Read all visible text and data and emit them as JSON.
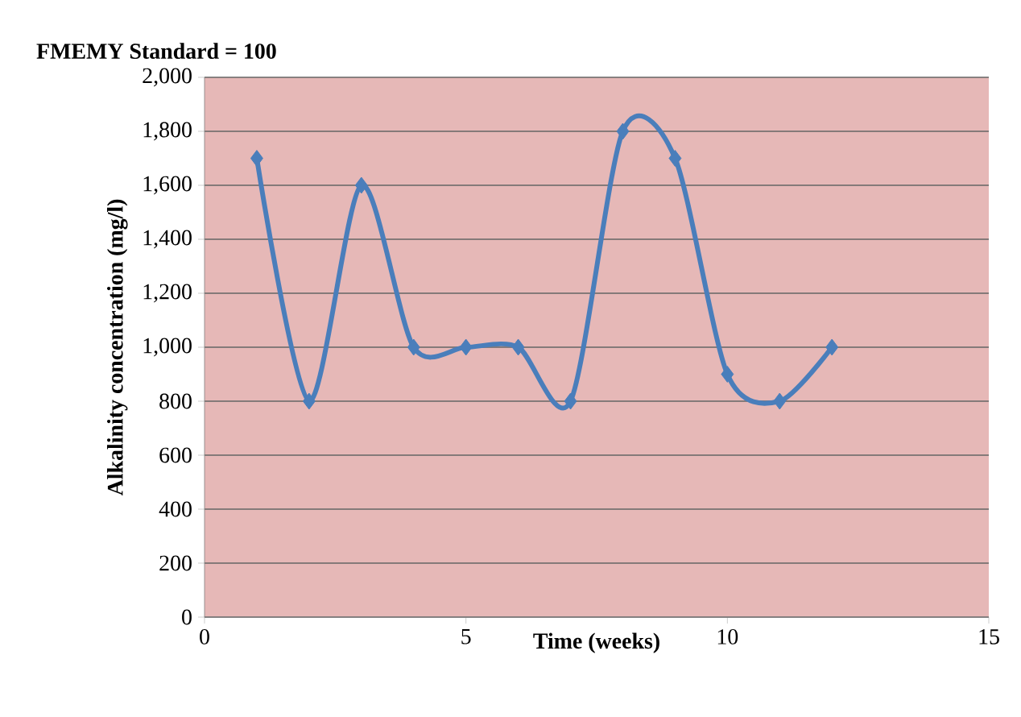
{
  "chart_data": {
    "type": "line",
    "title": "FMEMY Standard = 100",
    "xlabel": "Time (weeks)",
    "ylabel": "Alkalinity concentration (mg/l)",
    "x": [
      1,
      2,
      3,
      4,
      5,
      6,
      7,
      8,
      9,
      10,
      11,
      12
    ],
    "series": [
      {
        "color": "#4a7ebb",
        "values": [
          1700,
          800,
          1600,
          1000,
          1000,
          1000,
          800,
          1800,
          1700,
          900,
          800,
          1000
        ]
      }
    ],
    "xlim": [
      0,
      15
    ],
    "xticks": [
      0,
      5,
      10,
      15
    ],
    "ylim": [
      0,
      2000
    ],
    "yticks": [
      0,
      200,
      400,
      600,
      800,
      {
        "value": 1000,
        "label": "1,000"
      },
      {
        "value": 1200,
        "label": "1,200"
      },
      {
        "value": 1400,
        "label": "1,400"
      },
      {
        "value": 1600,
        "label": "1,600"
      },
      {
        "value": 1800,
        "label": "1,800"
      },
      {
        "value": 2000,
        "label": "2,000"
      }
    ],
    "grid": "y",
    "marker": "diamond",
    "line_style": "solid"
  }
}
